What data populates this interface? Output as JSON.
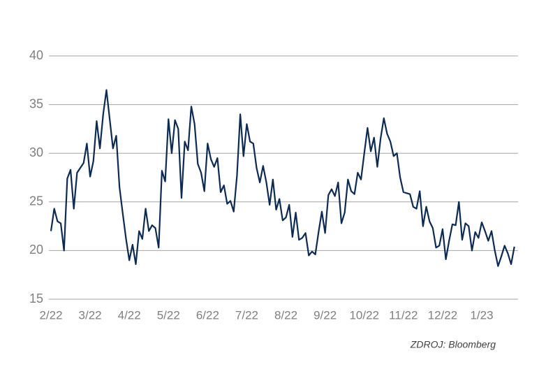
{
  "chart_data": {
    "type": "line",
    "source": "ZDROJ: Bloomberg",
    "categories": [
      "2/22",
      null,
      null,
      null,
      null,
      null,
      null,
      null,
      null,
      null,
      null,
      null,
      "3/22",
      null,
      null,
      null,
      null,
      null,
      null,
      null,
      null,
      null,
      null,
      null,
      "4/22",
      null,
      null,
      null,
      null,
      null,
      null,
      null,
      null,
      null,
      null,
      null,
      "5/22",
      null,
      null,
      null,
      null,
      null,
      null,
      null,
      null,
      null,
      null,
      null,
      "6/22",
      null,
      null,
      null,
      null,
      null,
      null,
      null,
      null,
      null,
      null,
      null,
      "7/22",
      null,
      null,
      null,
      null,
      null,
      null,
      null,
      null,
      null,
      null,
      null,
      "8/22",
      null,
      null,
      null,
      null,
      null,
      null,
      null,
      null,
      null,
      null,
      null,
      "9/22",
      null,
      null,
      null,
      null,
      null,
      null,
      null,
      null,
      null,
      null,
      null,
      "10/22",
      null,
      null,
      null,
      null,
      null,
      null,
      null,
      null,
      null,
      null,
      null,
      "11/22",
      null,
      null,
      null,
      null,
      null,
      null,
      null,
      null,
      null,
      null,
      null,
      "12/22",
      null,
      null,
      null,
      null,
      null,
      null,
      null,
      null,
      null,
      null,
      null,
      "1/23",
      null,
      null,
      null,
      null,
      null,
      null,
      null,
      null,
      null,
      null
    ],
    "series": [
      {
        "color": "#0c2a52",
        "values": [
          22.0,
          24.3,
          23.0,
          22.8,
          20.0,
          27.4,
          28.3,
          24.3,
          28.0,
          28.5,
          29.0,
          31.0,
          27.6,
          29.2,
          33.3,
          30.5,
          34.0,
          36.5,
          33.5,
          30.5,
          31.8,
          26.5,
          23.8,
          21.2,
          19.0,
          20.6,
          18.6,
          22.0,
          21.2,
          24.3,
          22.0,
          22.6,
          22.3,
          20.3,
          28.2,
          27.1,
          33.5,
          30.0,
          33.4,
          32.5,
          25.4,
          31.2,
          30.3,
          34.8,
          33.0,
          28.9,
          28.0,
          26.1,
          31.0,
          29.4,
          28.6,
          29.5,
          26.0,
          26.7,
          24.8,
          25.1,
          24.0,
          27.7,
          34.0,
          29.7,
          33.0,
          31.2,
          31.0,
          28.5,
          27.0,
          28.7,
          27.0,
          24.7,
          27.3,
          24.2,
          25.3,
          23.1,
          23.4,
          24.7,
          21.4,
          23.9,
          21.1,
          21.3,
          21.8,
          19.5,
          19.9,
          19.6,
          21.9,
          24.0,
          21.8,
          25.7,
          26.3,
          25.6,
          27.0,
          22.8,
          23.9,
          27.3,
          26.1,
          25.8,
          28.0,
          27.3,
          30.0,
          32.6,
          30.2,
          31.6,
          28.6,
          31.5,
          33.6,
          32.0,
          31.2,
          29.7,
          30.0,
          27.5,
          26.0,
          25.9,
          25.8,
          24.5,
          24.3,
          26.1,
          22.5,
          24.5,
          23.0,
          22.3,
          20.3,
          20.5,
          22.2,
          19.1,
          21.0,
          22.7,
          22.6,
          25.0,
          21.1,
          22.8,
          22.5,
          20.0,
          21.9,
          21.3,
          22.9,
          22.0,
          21.0,
          22.0,
          20.0,
          18.4,
          19.4,
          20.5,
          19.7,
          18.6,
          20.4
        ]
      }
    ],
    "ylim": [
      15,
      40
    ],
    "yticks": [
      15,
      20,
      25,
      30,
      35,
      40
    ],
    "grid": true
  }
}
